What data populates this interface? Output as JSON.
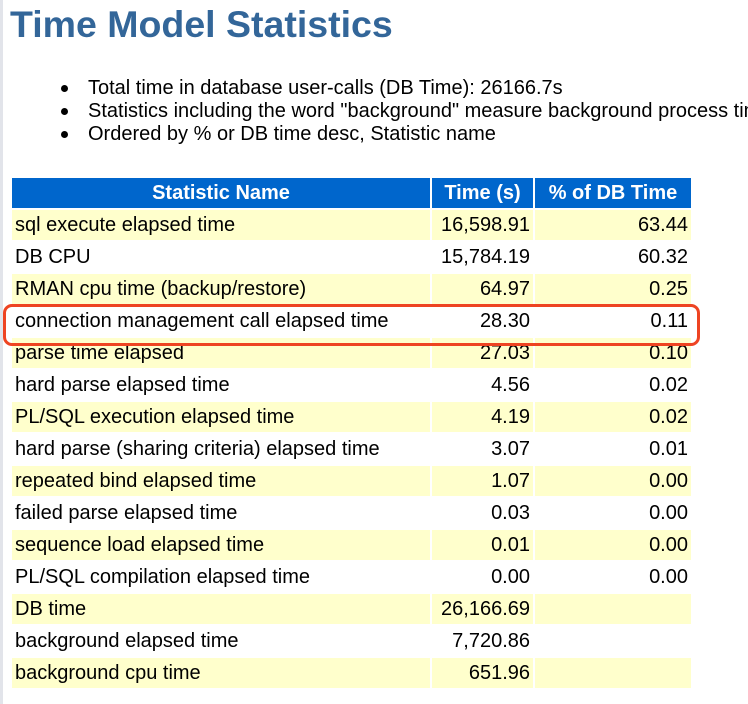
{
  "page": {
    "title": "Time Model Statistics"
  },
  "notes": [
    "Total time in database user-calls (DB Time): 26166.7s",
    "Statistics including the word \"background\" measure background process time, and so do not contribute to the DB time statistic",
    "Ordered by % or DB time desc, Statistic name"
  ],
  "table": {
    "headers": [
      "Statistic Name",
      "Time (s)",
      "% of DB Time"
    ],
    "rows": [
      {
        "name": "sql execute elapsed time",
        "time": "16,598.91",
        "pct": "63.44"
      },
      {
        "name": "DB CPU",
        "time": "15,784.19",
        "pct": "60.32"
      },
      {
        "name": "RMAN cpu time (backup/restore)",
        "time": "64.97",
        "pct": "0.25"
      },
      {
        "name": "connection management call elapsed time",
        "time": "28.30",
        "pct": "0.11"
      },
      {
        "name": "parse time elapsed",
        "time": "27.03",
        "pct": "0.10"
      },
      {
        "name": "hard parse elapsed time",
        "time": "4.56",
        "pct": "0.02"
      },
      {
        "name": "PL/SQL execution elapsed time",
        "time": "4.19",
        "pct": "0.02"
      },
      {
        "name": "hard parse (sharing criteria) elapsed time",
        "time": "3.07",
        "pct": "0.01"
      },
      {
        "name": "repeated bind elapsed time",
        "time": "1.07",
        "pct": "0.00"
      },
      {
        "name": "failed parse elapsed time",
        "time": "0.03",
        "pct": "0.00"
      },
      {
        "name": "sequence load elapsed time",
        "time": "0.01",
        "pct": "0.00"
      },
      {
        "name": "PL/SQL compilation elapsed time",
        "time": "0.00",
        "pct": "0.00"
      },
      {
        "name": "DB time",
        "time": "26,166.69",
        "pct": ""
      },
      {
        "name": "background elapsed time",
        "time": "7,720.86",
        "pct": ""
      },
      {
        "name": "background cpu time",
        "time": "651.96",
        "pct": ""
      }
    ]
  },
  "colors": {
    "title": "#336699",
    "header_bg": "#0066cc",
    "row_alt_bg": "#ffffcc",
    "highlight_border": "#ee4422"
  }
}
